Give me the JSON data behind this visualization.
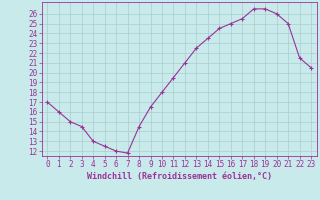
{
  "x": [
    0,
    1,
    2,
    3,
    4,
    5,
    6,
    7,
    8,
    9,
    10,
    11,
    12,
    13,
    14,
    15,
    16,
    17,
    18,
    19,
    20,
    21,
    22,
    23
  ],
  "y": [
    17,
    16,
    15,
    14.5,
    13,
    12.5,
    12,
    11.8,
    14.5,
    16.5,
    18,
    19.5,
    21,
    22.5,
    23.5,
    24.5,
    25,
    25.5,
    26.5,
    26.5,
    26,
    25,
    21.5,
    20.5
  ],
  "line_color": "#993399",
  "marker": "+",
  "bg_color": "#c8eaea",
  "grid_color": "#aacccc",
  "xlabel": "Windchill (Refroidissement éolien,°C)",
  "ylabel_ticks": [
    12,
    13,
    14,
    15,
    16,
    17,
    18,
    19,
    20,
    21,
    22,
    23,
    24,
    25,
    26
  ],
  "xticks": [
    0,
    1,
    2,
    3,
    4,
    5,
    6,
    7,
    8,
    9,
    10,
    11,
    12,
    13,
    14,
    15,
    16,
    17,
    18,
    19,
    20,
    21,
    22,
    23
  ],
  "ylim": [
    11.5,
    27.2
  ],
  "xlim": [
    -0.5,
    23.5
  ],
  "font_color": "#993399",
  "tick_fontsize": 5.5,
  "label_fontsize": 6.0
}
